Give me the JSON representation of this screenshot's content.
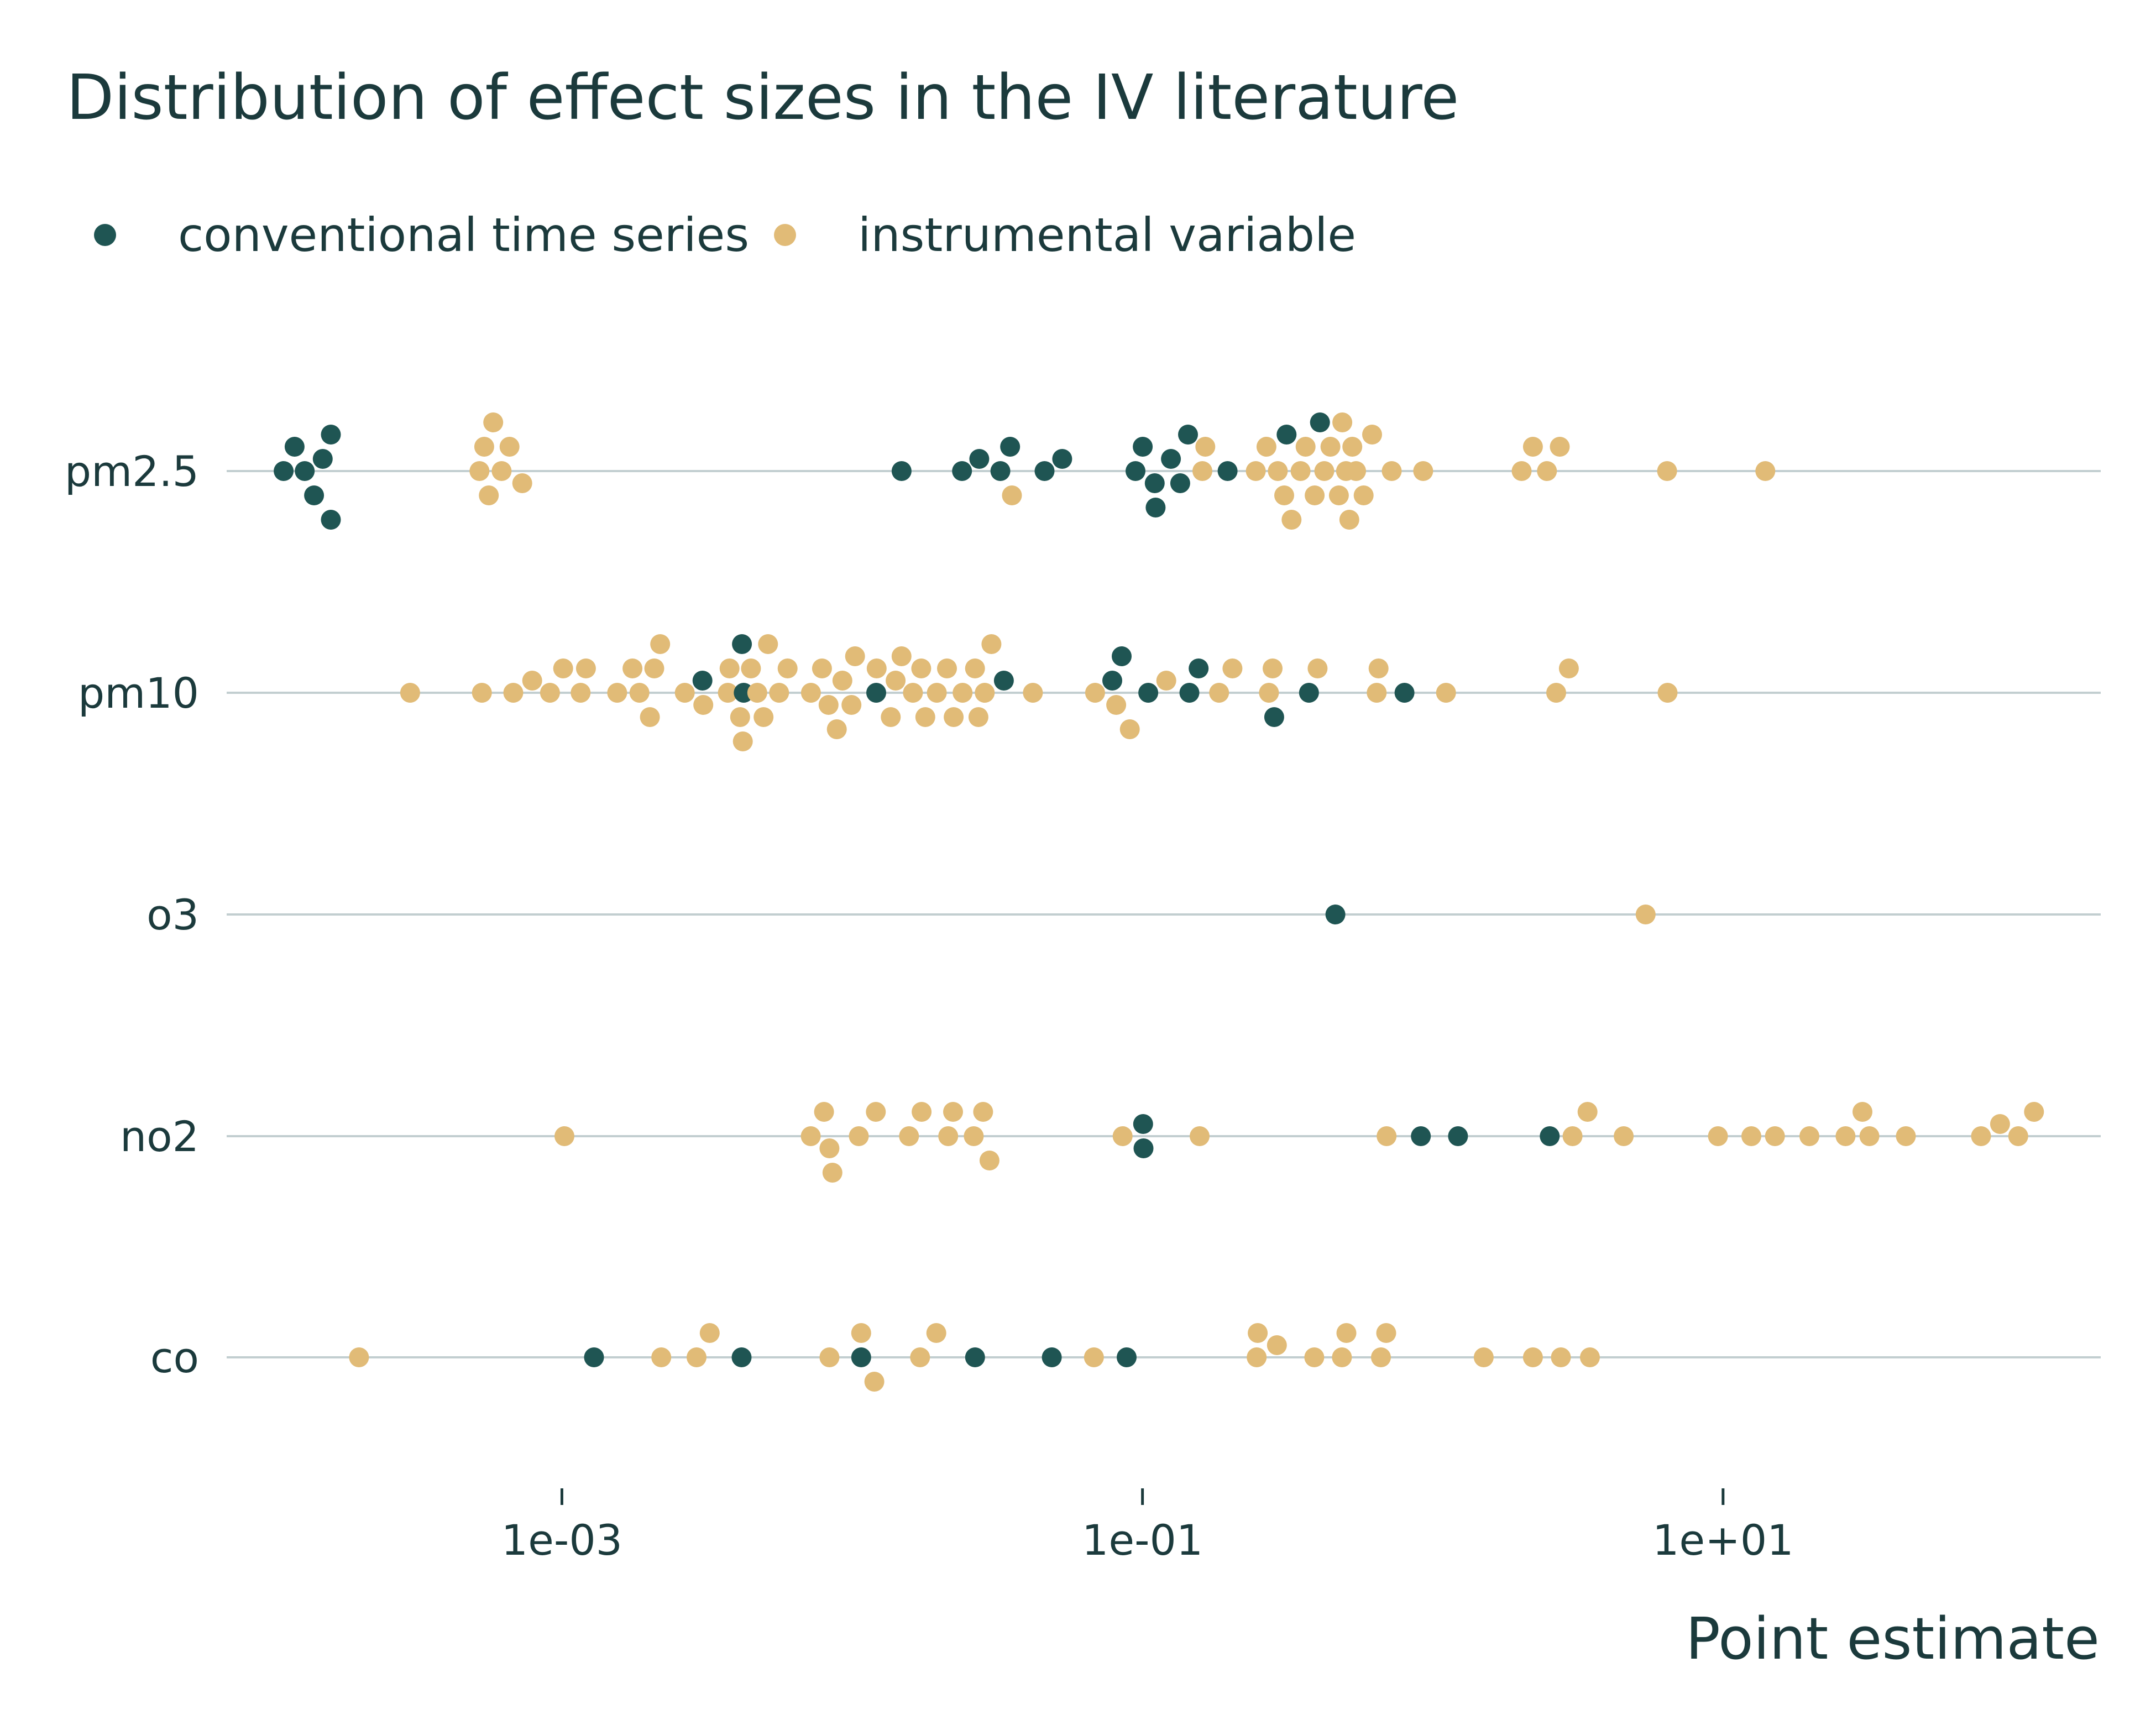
{
  "chart_data": {
    "type": "scatter",
    "title": "Distribution of effect sizes in the IV literature",
    "xlabel": "Point estimate",
    "ylabel": "",
    "x_scale": "log10",
    "xlim": [
      7e-05,
      200
    ],
    "x_ticks": [
      {
        "value": 0.001,
        "label": "1e-03"
      },
      {
        "value": 0.1,
        "label": "1e-01"
      },
      {
        "value": 10,
        "label": "1e+01"
      }
    ],
    "categories": [
      "pm2.5",
      "pm10",
      "o3",
      "no2",
      "co"
    ],
    "legend": {
      "position": "top-left"
    },
    "grid": {
      "horizontal": true,
      "vertical": false
    },
    "colors": {
      "conventional time series": "#1f5553",
      "instrumental variable": "#e1bb77",
      "text": "#1b3a3c",
      "grid": "#c2ced0"
    },
    "series": [
      {
        "name": "conventional time series",
        "color": "#1f5553",
        "points": {
          "pm2.5": [
            0.00011,
            0.00012,
            0.00013,
            0.00014,
            0.00015,
            0.00016,
            0.00016,
            0.0148,
            0.0239,
            0.0274,
            0.0324,
            0.035,
            0.046,
            0.0529,
            0.0946,
            0.1002,
            0.1102,
            0.111,
            0.1253,
            0.1349,
            0.1435,
            0.1964,
            0.3136,
            0.4087
          ],
          "pm10": [
            0.00305,
            0.00417,
            0.00423,
            0.0121,
            0.0333,
            0.0787,
            0.0848,
            0.1047,
            0.1451,
            0.1561,
            0.2843,
            0.3746,
            0.7992
          ],
          "o3": [
            0.462
          ],
          "no2": [
            0.1005,
            0.1008,
            0.9099,
            1.2219,
            2.5292
          ],
          "co": [
            0.00129,
            0.00416,
            0.01074,
            0.0265,
            0.0487,
            0.0882
          ]
        }
      },
      {
        "name": "instrumental variable",
        "color": "#e1bb77",
        "points": {
          "pm2.5": [
            0.00052,
            0.00054,
            0.00056,
            0.00058,
            0.00062,
            0.00066,
            0.00073,
            0.0355,
            0.1608,
            0.1646,
            0.2457,
            0.2674,
            0.2925,
            0.3078,
            0.3263,
            0.3505,
            0.3647,
            0.3919,
            0.4229,
            0.4441,
            0.4748,
            0.4879,
            0.5026,
            0.516,
            0.5282,
            0.5442,
            0.5779,
            0.618,
            0.7221,
            0.927,
            2.024,
            2.2129,
            2.4734,
            2.7389,
            6.4149,
            13.9826
          ],
          "pm10": [
            0.0003,
            0.00053,
            0.00068,
            0.00079,
            0.00091,
            0.00101,
            0.00116,
            0.00121,
            0.00155,
            0.00175,
            0.00185,
            0.00201,
            0.00208,
            0.00218,
            0.00265,
            0.00307,
            0.00373,
            0.00378,
            0.00411,
            0.0042,
            0.00448,
            0.00471,
            0.00495,
            0.00513,
            0.0056,
            0.00599,
            0.00721,
            0.00787,
            0.00829,
            0.00885,
            0.00925,
            0.00994,
            0.01023,
            0.01214,
            0.01358,
            0.01411,
            0.01479,
            0.01619,
            0.01729,
            0.01786,
            0.01957,
            0.02121,
            0.02237,
            0.024,
            0.02649,
            0.02722,
            0.02862,
            0.03018,
            0.04193,
            0.06867,
            0.08117,
            0.09044,
            0.12078,
            0.18359,
            0.20416,
            0.27269,
            0.28074,
            0.40115,
            0.64097,
            0.65048,
            1.11094,
            2.66245,
            2.94301,
            6.44022
          ],
          "o3": [
            5.4108
          ],
          "no2": [
            0.00102,
            0.0072,
            0.008,
            0.00835,
            0.00855,
            0.01054,
            0.01206,
            0.01569,
            0.01734,
            0.02142,
            0.02226,
            0.02622,
            0.02825,
            0.02972,
            0.08542,
            0.15731,
            0.69331,
            3.03041,
            3.41271,
            4.54657,
            9.60281,
            12.51346,
            15.09223,
            19.83201,
            26.4164,
            30.21112,
            31.93487,
            42.63102,
            77.39689,
            90.01,
            103.9862,
            117.8125
          ],
          "co": [
            0.0002,
            0.0022,
            0.00291,
            0.00323,
            0.00835,
            0.01074,
            0.01192,
            0.01713,
            0.01949,
            0.06802,
            0.24734,
            0.24951,
            0.29049,
            0.39074,
            0.48655,
            0.50402,
            0.66283,
            0.69114,
            1.49812,
            2.21297,
            2.76283,
            3.47811
          ]
        }
      }
    ]
  }
}
